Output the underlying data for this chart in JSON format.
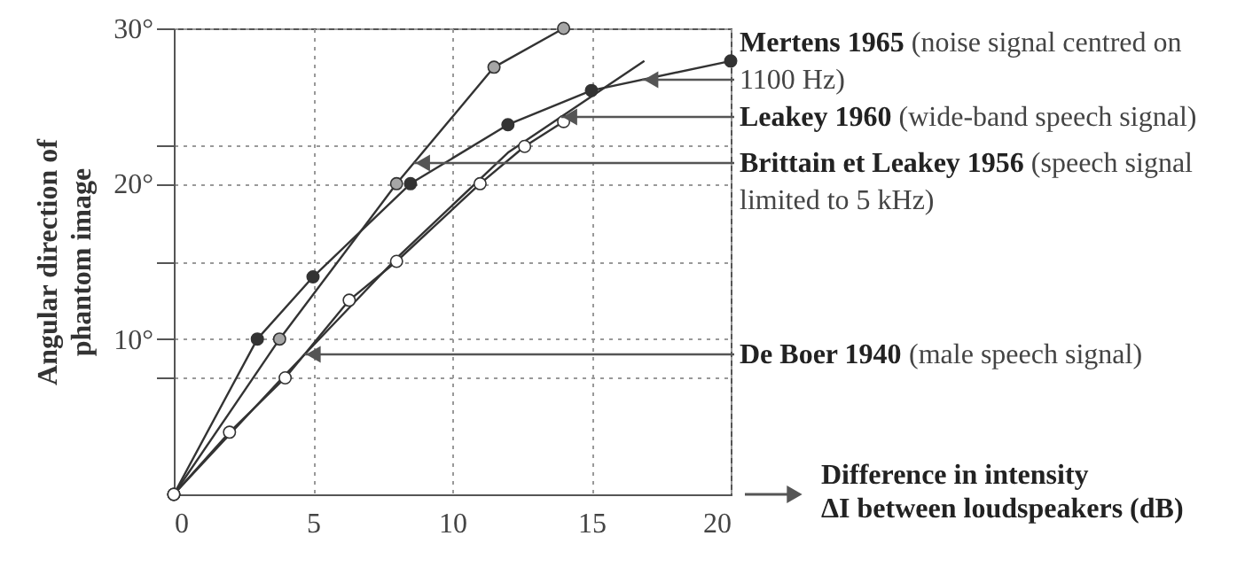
{
  "chart_data": {
    "type": "line",
    "ylabel": "Angular direction of\nphantom image",
    "xlabel": "Difference in intensity\nΔI between loudspeakers (dB)",
    "xlim": [
      0,
      20
    ],
    "xticks": [
      0,
      5,
      10,
      15,
      20
    ],
    "ylim": [
      0,
      30
    ],
    "yticks": [
      {
        "value": 7.5,
        "label": null
      },
      {
        "value": 10,
        "label": "10°"
      },
      {
        "value": 15,
        "label": null
      },
      {
        "value": 20,
        "label": "20°"
      },
      {
        "value": 22.5,
        "label": null
      },
      {
        "value": 30,
        "label": "30°"
      }
    ],
    "grid": true,
    "series": [
      {
        "name": "Mertens 1965",
        "color": "#333333",
        "marker": "circle",
        "x": [
          0,
          3,
          5,
          8.5,
          12,
          15,
          20
        ],
        "values": [
          0,
          10,
          14,
          20,
          23.8,
          26,
          27.9
        ]
      },
      {
        "name": "Leakey 1960",
        "color": "#333333",
        "marker": "none",
        "x": [
          0,
          4,
          8,
          12,
          16.9
        ],
        "values": [
          0,
          7.7,
          15.2,
          22,
          27.9
        ]
      },
      {
        "name": "Brittain et Leakey 1956",
        "color": "#a6a6a6",
        "marker": "circle",
        "x": [
          0,
          3.8,
          8,
          11.5,
          14
        ],
        "values": [
          0,
          10,
          20,
          27.5,
          30
        ]
      },
      {
        "name": "De Boer 1940",
        "color": "#ffffff",
        "marker": "circle",
        "x": [
          0,
          2,
          4,
          6.3,
          8,
          11,
          12.6,
          14
        ],
        "values": [
          0,
          4,
          7.5,
          12.5,
          15,
          20,
          22.4,
          24
        ]
      }
    ],
    "annotations": [
      "(noise signal centred on 1100 Hz)",
      "(wide-band speech signal)",
      "(speech signal limited to 5 kHz)",
      "(male speech signal)"
    ]
  }
}
